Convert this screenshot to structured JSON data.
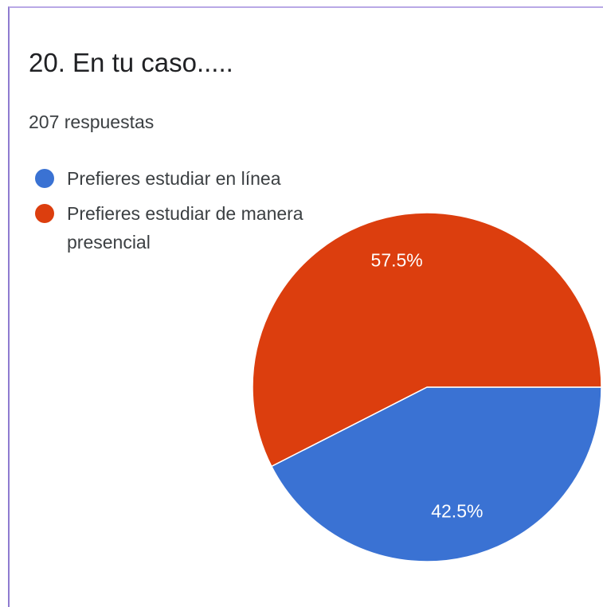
{
  "chart_data": {
    "type": "pie",
    "title": "20. En tu caso.....",
    "subtitle": "207 respuestas",
    "categories": [
      "Prefieres estudiar en línea",
      "Prefieres estudiar de manera presencial"
    ],
    "values": [
      42.5,
      57.5
    ],
    "value_labels": [
      "42.5%",
      "57.5%"
    ],
    "colors": [
      "#3a72d3",
      "#dc3e0e"
    ]
  }
}
